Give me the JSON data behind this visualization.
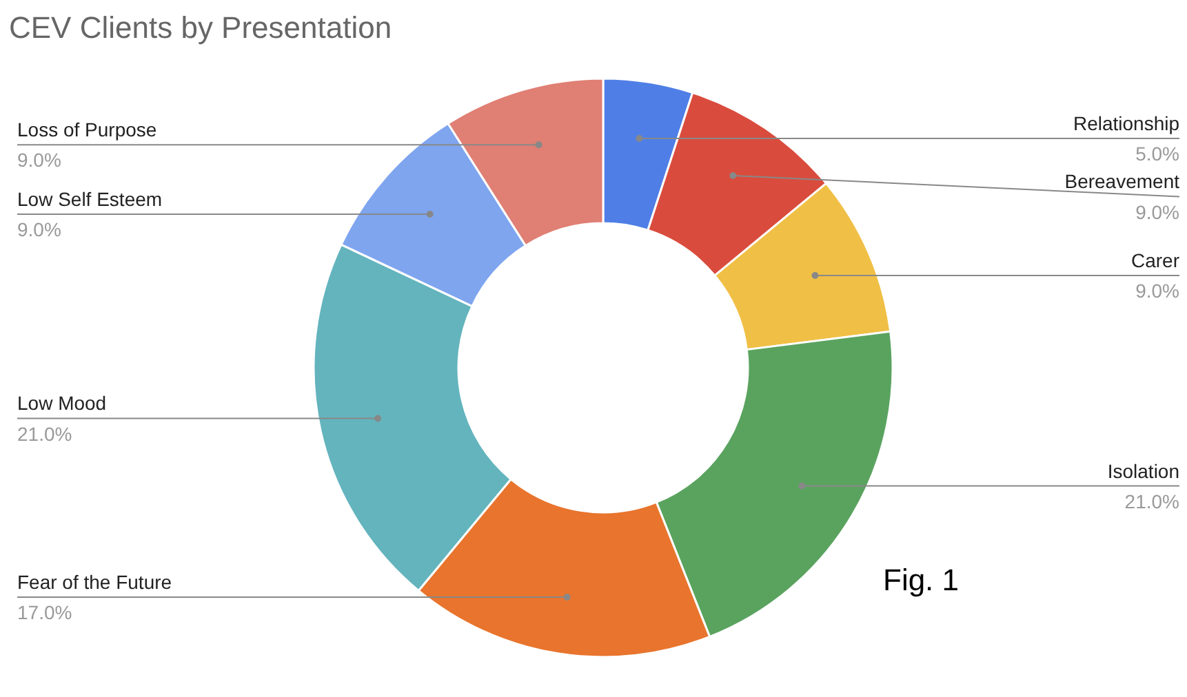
{
  "chart_data": {
    "type": "donut",
    "title": "CEV Clients by Presentation",
    "categories": [
      "Relationship",
      "Bereavement",
      "Carer",
      "Isolation",
      "Fear of the Future",
      "Low Mood",
      "Low Self Esteem",
      "Loss of Purpose"
    ],
    "values": [
      5,
      9,
      9,
      21,
      17,
      21,
      9,
      9
    ],
    "value_labels": [
      "5.0%",
      "9.0%",
      "9.0%",
      "21.0%",
      "17.0%",
      "21.0%",
      "9.0%",
      "9.0%"
    ],
    "colors": [
      "#4f7fe6",
      "#d94c3d",
      "#f0bf45",
      "#5aa35f",
      "#e8742d",
      "#63b4bd",
      "#7fa5ef",
      "#e07f74"
    ],
    "annotations": [
      "Fig. 1"
    ]
  }
}
